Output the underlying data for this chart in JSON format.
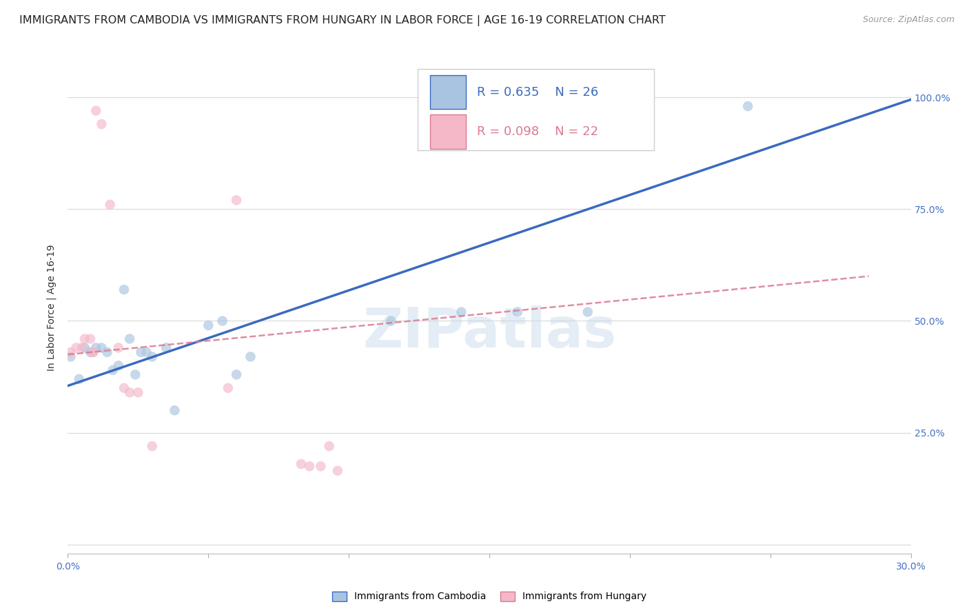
{
  "title": "IMMIGRANTS FROM CAMBODIA VS IMMIGRANTS FROM HUNGARY IN LABOR FORCE | AGE 16-19 CORRELATION CHART",
  "source": "Source: ZipAtlas.com",
  "ylabel": "In Labor Force | Age 16-19",
  "xlim": [
    0.0,
    0.3
  ],
  "ylim": [
    -0.02,
    1.08
  ],
  "xticks": [
    0.0,
    0.05,
    0.1,
    0.15,
    0.2,
    0.25,
    0.3
  ],
  "xtick_labels": [
    "0.0%",
    "",
    "",
    "",
    "",
    "",
    "30.0%"
  ],
  "yticks": [
    0.0,
    0.25,
    0.5,
    0.75,
    1.0
  ],
  "ytick_labels": [
    "",
    "25.0%",
    "50.0%",
    "75.0%",
    "100.0%"
  ],
  "cambodia_color": "#a8c4e0",
  "hungary_color": "#f4b8c8",
  "cambodia_line_color": "#3a6abf",
  "hungary_line_color": "#d97a90",
  "legend_R_cambodia": "R = 0.635",
  "legend_N_cambodia": "N = 26",
  "legend_R_hungary": "R = 0.098",
  "legend_N_hungary": "N = 22",
  "watermark": "ZIPatlas",
  "cambodia_x": [
    0.001,
    0.004,
    0.006,
    0.008,
    0.01,
    0.012,
    0.014,
    0.016,
    0.018,
    0.02,
    0.022,
    0.024,
    0.026,
    0.028,
    0.03,
    0.035,
    0.038,
    0.05,
    0.055,
    0.06,
    0.065,
    0.115,
    0.14,
    0.16,
    0.185,
    0.242
  ],
  "cambodia_y": [
    0.42,
    0.37,
    0.44,
    0.43,
    0.44,
    0.44,
    0.43,
    0.39,
    0.4,
    0.57,
    0.46,
    0.38,
    0.43,
    0.43,
    0.42,
    0.44,
    0.3,
    0.49,
    0.5,
    0.38,
    0.42,
    0.5,
    0.52,
    0.52,
    0.52,
    0.98
  ],
  "hungary_x": [
    0.001,
    0.003,
    0.005,
    0.006,
    0.008,
    0.009,
    0.009,
    0.01,
    0.012,
    0.015,
    0.018,
    0.02,
    0.022,
    0.025,
    0.03,
    0.057,
    0.06,
    0.083,
    0.086,
    0.09,
    0.093,
    0.096
  ],
  "hungary_y": [
    0.43,
    0.44,
    0.44,
    0.46,
    0.46,
    0.43,
    0.43,
    0.97,
    0.94,
    0.76,
    0.44,
    0.35,
    0.34,
    0.34,
    0.22,
    0.35,
    0.77,
    0.18,
    0.175,
    0.175,
    0.22,
    0.165
  ],
  "cambodia_line_x0": 0.0,
  "cambodia_line_x1": 0.3,
  "cambodia_line_y0": 0.355,
  "cambodia_line_y1": 0.995,
  "hungary_line_x0": 0.0,
  "hungary_line_x1": 0.285,
  "hungary_line_y0": 0.425,
  "hungary_line_y1": 0.6,
  "scatter_size": 110,
  "scatter_alpha": 0.65,
  "grid_color": "#d8d8d8",
  "background_color": "#ffffff",
  "title_fontsize": 11.5,
  "axis_label_fontsize": 10,
  "tick_fontsize": 10,
  "tick_color": "#4472c4",
  "legend_fontsize": 13
}
